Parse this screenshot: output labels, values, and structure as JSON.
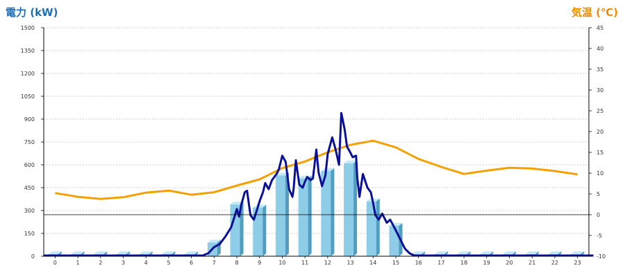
{
  "chart_data": {
    "type": "bar-line-combo",
    "left_axis": {
      "title": "電力 (kW)",
      "range": [
        0,
        1500
      ],
      "ticks": [
        "0",
        "150",
        "300",
        "450",
        "600",
        "750",
        "900",
        "1050",
        "1200",
        "1350",
        "1500"
      ]
    },
    "right_axis": {
      "title": "気温 (℃)",
      "range": [
        -10,
        45
      ],
      "ticks": [
        "-10",
        "-5",
        "0",
        "5",
        "10",
        "15",
        "20",
        "25",
        "30",
        "35",
        "40",
        "45"
      ]
    },
    "x_ticks": [
      "0",
      "1",
      "2",
      "3",
      "4",
      "5",
      "6",
      "7",
      "8",
      "9",
      "10",
      "11",
      "12",
      "13",
      "14",
      "15",
      "16",
      "17",
      "18",
      "19",
      "20",
      "21",
      "22",
      "23"
    ],
    "grid": "horizontal-dotted",
    "hourly_power": [
      2,
      2,
      2,
      2,
      2,
      2,
      2,
      90,
      340,
      320,
      530,
      510,
      560,
      610,
      360,
      200,
      2,
      2,
      2,
      2,
      2,
      2,
      2,
      2
    ],
    "power_curve": {
      "x": [
        6.5,
        6.75,
        7.0,
        7.25,
        7.5,
        7.75,
        7.9,
        8.0,
        8.1,
        8.2,
        8.35,
        8.45,
        8.6,
        8.75,
        8.9,
        9.0,
        9.15,
        9.25,
        9.4,
        9.55,
        9.75,
        9.85,
        10.0,
        10.15,
        10.3,
        10.45,
        10.5,
        10.6,
        10.75,
        10.9,
        11.0,
        11.1,
        11.25,
        11.35,
        11.5,
        11.6,
        11.75,
        11.9,
        12.0,
        12.2,
        12.35,
        12.5,
        12.6,
        12.75,
        12.85,
        13.0,
        13.1,
        13.25,
        13.3,
        13.4,
        13.55,
        13.75,
        13.9,
        14.0,
        14.1,
        14.25,
        14.4,
        14.6,
        14.75,
        15.0,
        15.2,
        15.4,
        15.6,
        15.8,
        16.0,
        16.5,
        23.7
      ],
      "y": [
        0,
        20,
        60,
        80,
        130,
        190,
        260,
        310,
        260,
        340,
        420,
        430,
        270,
        240,
        310,
        360,
        420,
        480,
        440,
        500,
        540,
        570,
        660,
        620,
        440,
        390,
        440,
        630,
        470,
        450,
        490,
        520,
        500,
        510,
        700,
        550,
        460,
        530,
        670,
        780,
        700,
        600,
        940,
        830,
        720,
        680,
        650,
        660,
        520,
        390,
        540,
        450,
        420,
        350,
        270,
        240,
        280,
        220,
        240,
        170,
        110,
        50,
        20,
        5,
        0,
        0,
        0
      ]
    },
    "temperature": {
      "x": [
        0,
        1,
        2,
        3,
        4,
        5,
        6,
        7,
        8,
        9,
        10,
        11,
        12,
        13,
        14,
        15,
        16,
        17,
        18,
        19,
        20,
        21,
        22,
        23
      ],
      "y": [
        5.2,
        4.3,
        3.8,
        4.2,
        5.3,
        5.8,
        4.8,
        5.4,
        7.0,
        8.5,
        11.2,
        12.8,
        15.0,
        16.8,
        17.8,
        16.2,
        13.4,
        11.5,
        9.8,
        10.6,
        11.3,
        11.1,
        10.5,
        9.7
      ]
    },
    "colors": {
      "bar": "#8ecde8",
      "bar_side": "#4f9dbf",
      "bar_top": "#c5e8f6",
      "power_line": "#0a1096",
      "temperature_line": "#f5a000",
      "left_title": "#1a6fb8",
      "right_title": "#f08a00"
    }
  }
}
